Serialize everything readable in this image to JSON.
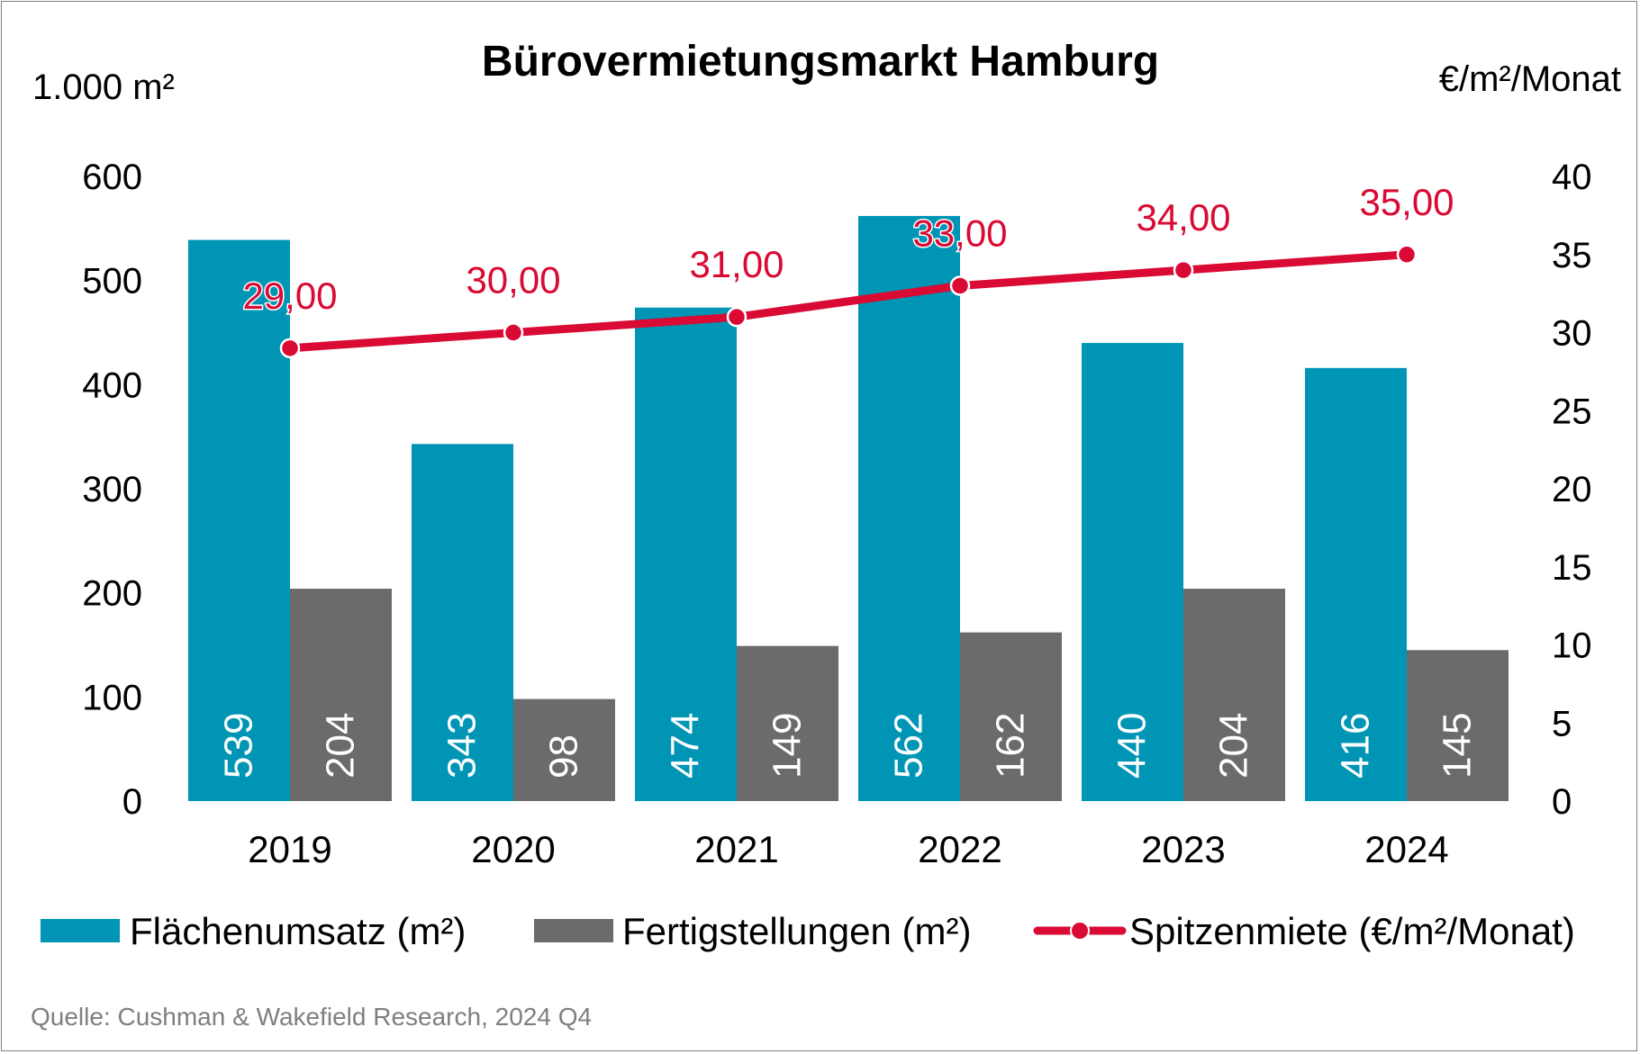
{
  "chart_data": {
    "type": "bar",
    "title": "Bürovermietungsmarkt Hamburg",
    "ylabel": "1.000 m²",
    "y2label": "€/m²/Monat",
    "categories": [
      "2019",
      "2020",
      "2021",
      "2022",
      "2023",
      "2024"
    ],
    "ylim": [
      0,
      600
    ],
    "yticks": [
      0,
      100,
      200,
      300,
      400,
      500,
      600
    ],
    "y2lim": [
      0,
      40
    ],
    "y2ticks": [
      0,
      5,
      10,
      15,
      20,
      25,
      30,
      35,
      40
    ],
    "series": [
      {
        "name": "Flächenumsatz (m²)",
        "type": "bar",
        "axis": "left",
        "color": "#0095b5",
        "values": [
          539,
          343,
          474,
          562,
          440,
          416
        ],
        "labels": [
          "539",
          "343",
          "474",
          "562",
          "440",
          "416"
        ]
      },
      {
        "name": "Fertigstellungen (m²)",
        "type": "bar",
        "axis": "left",
        "color": "#6b6b6b",
        "values": [
          204,
          98,
          149,
          162,
          204,
          145
        ],
        "labels": [
          "204",
          "98",
          "149",
          "162",
          "204",
          "145"
        ]
      },
      {
        "name": "Spitzenmiete (€/m²/Monat)",
        "type": "line",
        "axis": "right",
        "color": "#d90a33",
        "values": [
          29,
          30,
          31,
          33,
          34,
          35
        ],
        "labels": [
          "29,00",
          "30,00",
          "31,00",
          "33,00",
          "34,00",
          "35,00"
        ]
      }
    ],
    "grid": false,
    "legend": "bottom",
    "source": "Quelle: Cushman & Wakefield Research, 2024 Q4"
  }
}
